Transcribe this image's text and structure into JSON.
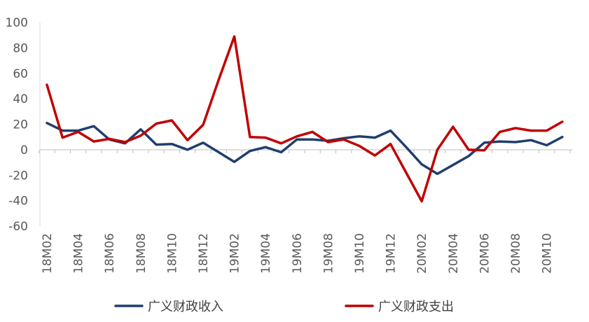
{
  "chart_data": {
    "type": "line",
    "title": "",
    "xlabel": "",
    "ylabel": "",
    "ylim": [
      -60,
      100
    ],
    "yticks": [
      -60,
      -40,
      -20,
      0,
      20,
      40,
      60,
      80,
      100
    ],
    "grid": false,
    "legend_position": "bottom",
    "x": [
      "18M02",
      "18M03",
      "18M04",
      "18M05",
      "18M06",
      "18M07",
      "18M08",
      "18M09",
      "18M10",
      "18M11",
      "18M12",
      "19M01",
      "19M02",
      "19M03",
      "19M04",
      "19M05",
      "19M06",
      "19M07",
      "19M08",
      "19M09",
      "19M10",
      "19M11",
      "19M12",
      "20M01",
      "20M02",
      "20M03",
      "20M04",
      "20M05",
      "20M06",
      "20M07",
      "20M08",
      "20M09",
      "20M10",
      "20M11"
    ],
    "xtick_labels": [
      "18M02",
      "18M04",
      "18M06",
      "18M08",
      "18M10",
      "18M12",
      "19M02",
      "19M04",
      "19M06",
      "19M08",
      "19M10",
      "19M12",
      "20M02",
      "20M04",
      "20M06",
      "20M08",
      "20M10"
    ],
    "series": [
      {
        "name": "广义财政收入",
        "color": "#1F3F6E",
        "values": [
          21,
          15,
          15,
          18.5,
          8,
          5,
          16,
          4,
          4.5,
          0,
          5.5,
          -2,
          -9.5,
          -1,
          2,
          -2,
          8,
          8,
          7,
          9,
          10.5,
          9.5,
          15,
          2,
          -11.5,
          -19,
          -12,
          -5,
          5.5,
          6.5,
          6,
          7.5,
          3.5,
          10
        ]
      },
      {
        "name": "广义财政支出",
        "color": "#C00000",
        "values": [
          51,
          9.5,
          14,
          6.5,
          8.5,
          6,
          11,
          20.5,
          23,
          7.5,
          19.5,
          55,
          89,
          10,
          9.5,
          5,
          10.5,
          14,
          6,
          8,
          3,
          -4.5,
          4.5,
          -18,
          -40.5,
          0,
          18,
          0,
          -0.5,
          14,
          17,
          15,
          15,
          22
        ]
      }
    ]
  }
}
